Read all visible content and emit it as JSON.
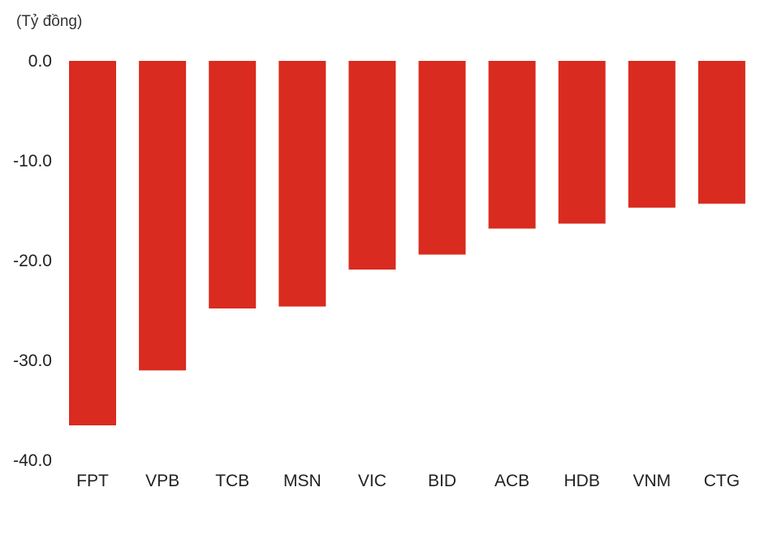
{
  "chart_data": {
    "type": "bar",
    "unit_label": "(Tỷ đồng)",
    "title": "",
    "xlabel": "",
    "ylabel": "",
    "categories": [
      "FPT",
      "VPB",
      "TCB",
      "MSN",
      "VIC",
      "BID",
      "ACB",
      "HDB",
      "VNM",
      "CTG"
    ],
    "values": [
      -36.5,
      -31.0,
      -24.8,
      -24.6,
      -20.9,
      -19.4,
      -16.8,
      -16.3,
      -14.7,
      -14.3
    ],
    "ylim": [
      -40,
      0
    ],
    "yticks": [
      0,
      -10,
      -20,
      -30,
      -40
    ],
    "ytick_labels": [
      "0.0",
      "-10.0",
      "-20.0",
      "-30.0",
      "-40.0"
    ],
    "grid": false,
    "bar_color": "#d92b1f"
  }
}
